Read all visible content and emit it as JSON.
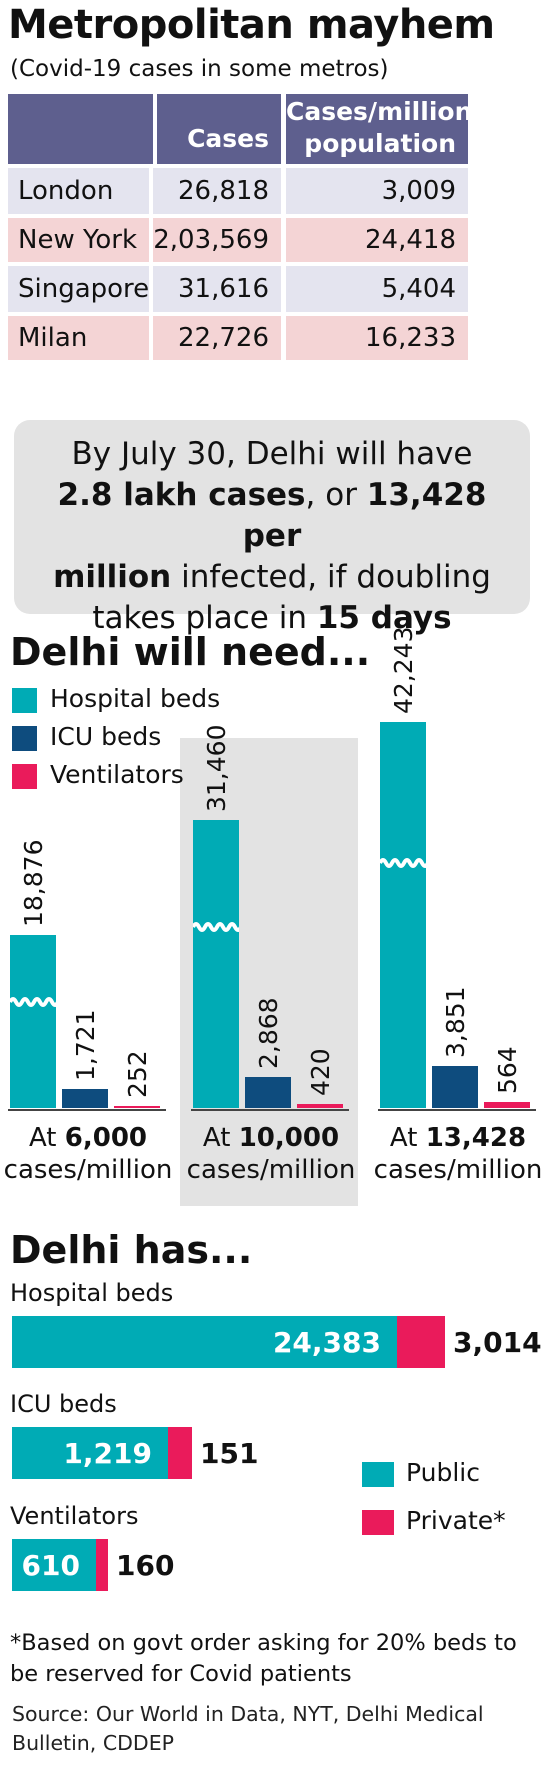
{
  "title": "Metropolitan mayhem",
  "subtitle": "(Covid-19 cases in some metros)",
  "table": {
    "headers": [
      "",
      "Cases",
      "Cases/million population"
    ],
    "rows": [
      [
        "London",
        "26,818",
        "3,009"
      ],
      [
        "New York",
        "2,03,569",
        "24,418"
      ],
      [
        "Singapore",
        "31,616",
        "5,404"
      ],
      [
        "Milan",
        "22,726",
        "16,233"
      ]
    ]
  },
  "callout": {
    "line1": "By July 30, Delhi will have",
    "bold1": "2.8 lakh cases",
    "text1": ", or ",
    "bold2": "13,428 per",
    "bold3": "million",
    "text2": " infected, if doubling",
    "text3": "takes place in ",
    "bold4": "15 days"
  },
  "section_need": "Delhi will need...",
  "section_has": "Delhi has...",
  "colors": {
    "hospital": "#00abb5",
    "icu": "#0e4c7e",
    "ventilators": "#ea1b5b",
    "public": "#00abb5",
    "private": "#ea1b5b",
    "table_header": "#5e5f8e"
  },
  "chart_data": [
    {
      "type": "bar",
      "legend_placement": "top-left",
      "categories_prefix": "At",
      "categories": [
        "6,000",
        "10,000",
        "13,428"
      ],
      "categories_suffix": "cases/million",
      "series": [
        {
          "name": "Hospital beds",
          "values": [
            18876,
            31460,
            42243
          ],
          "labels": [
            "18,876",
            "31,460",
            "42,243"
          ]
        },
        {
          "name": "ICU beds",
          "values": [
            1721,
            2868,
            3851
          ],
          "labels": [
            "1,721",
            "2,868",
            "3,851"
          ]
        },
        {
          "name": "Ventilators",
          "values": [
            252,
            420,
            564
          ],
          "labels": [
            "252",
            "420",
            "564"
          ]
        }
      ],
      "axis_break": true
    },
    {
      "type": "bar",
      "orientation": "horizontal",
      "stacked": true,
      "categories": [
        "Hospital beds",
        "ICU beds",
        "Ventilators"
      ],
      "series": [
        {
          "name": "Public",
          "values": [
            24383,
            1219,
            610
          ],
          "labels": [
            "24,383",
            "1,219",
            "610"
          ]
        },
        {
          "name": "Private*",
          "values": [
            3014,
            151,
            160
          ],
          "labels": [
            "3,014",
            "151",
            "160"
          ]
        }
      ],
      "legend_placement": "right"
    }
  ],
  "footnote": "*Based on govt order asking for 20% beds to be reserved for Covid patients",
  "source": "Source: Our World in Data, NYT, Delhi Medical Bulletin, CDDEP"
}
